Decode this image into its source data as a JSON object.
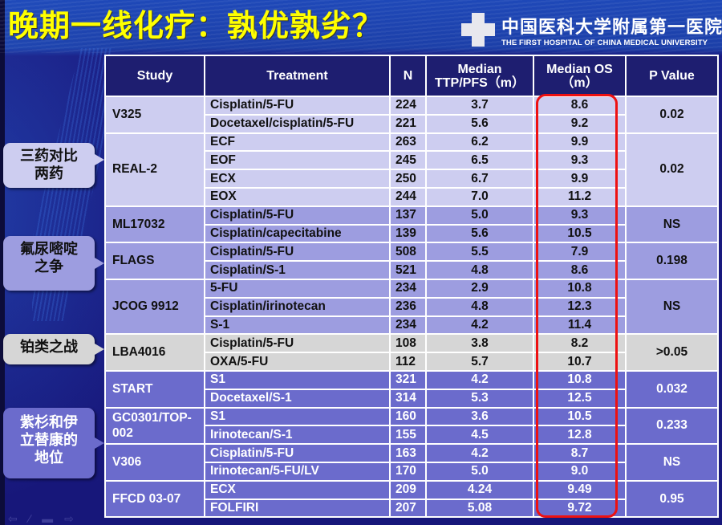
{
  "slide": {
    "title": "晚期一线化疗：孰优孰劣？",
    "logo": {
      "chinese_name": "中国医科大学附属第一医院",
      "english_name": "THE FIRST HOSPITAL OF CHINA  MEDICAL UNIVERSITY"
    }
  },
  "table": {
    "headers": {
      "study": "Study",
      "treatment": "Treatment",
      "n": "N",
      "pfs_line1": "Median",
      "pfs_line2": "TTP/PFS（m）",
      "os_line1": "Median OS",
      "os_line2": "（m）",
      "p": "P Value"
    },
    "groups": [
      {
        "study": "V325",
        "p": "0.02",
        "rows": [
          {
            "treatment": "Cisplatin/5-FU",
            "n": "224",
            "pfs": "3.7",
            "os": "8.6"
          },
          {
            "treatment": "Docetaxel/cisplatin/5-FU",
            "n": "221",
            "pfs": "5.6",
            "os": "9.2"
          }
        ]
      },
      {
        "study": "REAL-2",
        "p": "0.02",
        "rows": [
          {
            "treatment": "ECF",
            "n": "263",
            "pfs": "6.2",
            "os": "9.9"
          },
          {
            "treatment": "EOF",
            "n": "245",
            "pfs": "6.5",
            "os": "9.3"
          },
          {
            "treatment": "ECX",
            "n": "250",
            "pfs": "6.7",
            "os": "9.9"
          },
          {
            "treatment": "EOX",
            "n": "244",
            "pfs": "7.0",
            "os": "11.2"
          }
        ]
      },
      {
        "study": "ML17032",
        "p": "NS",
        "rows": [
          {
            "treatment": "Cisplatin/5-FU",
            "n": "137",
            "pfs": "5.0",
            "os": "9.3"
          },
          {
            "treatment": "Cisplatin/capecitabine",
            "n": "139",
            "pfs": "5.6",
            "os": "10.5"
          }
        ]
      },
      {
        "study": "FLAGS",
        "p": "0.198",
        "rows": [
          {
            "treatment": "Cisplatin/5-FU",
            "n": "508",
            "pfs": "5.5",
            "os": "7.9"
          },
          {
            "treatment": "Cisplatin/S-1",
            "n": "521",
            "pfs": "4.8",
            "os": "8.6"
          }
        ]
      },
      {
        "study": "JCOG 9912",
        "p": "NS",
        "rows": [
          {
            "treatment": "5-FU",
            "n": "234",
            "pfs": "2.9",
            "os": "10.8"
          },
          {
            "treatment": "Cisplatin/irinotecan",
            "n": "236",
            "pfs": "4.8",
            "os": "12.3"
          },
          {
            "treatment": "S-1",
            "n": "234",
            "pfs": "4.2",
            "os": "11.4"
          }
        ]
      },
      {
        "study": "LBA4016",
        "p": ">0.05",
        "rows": [
          {
            "treatment": "Cisplatin/5-FU",
            "n": "108",
            "pfs": "3.8",
            "os": "8.2"
          },
          {
            "treatment": "OXA/5-FU",
            "n": "112",
            "pfs": "5.7",
            "os": "10.7"
          }
        ]
      },
      {
        "study": "START",
        "p": "0.032",
        "rows": [
          {
            "treatment": "S1",
            "n": "321",
            "pfs": "4.2",
            "os": "10.8"
          },
          {
            "treatment": "Docetaxel/S-1",
            "n": "314",
            "pfs": "5.3",
            "os": "12.5"
          }
        ]
      },
      {
        "study": "GC0301/TOP-002",
        "p": "0.233",
        "rows": [
          {
            "treatment": "S1",
            "n": "160",
            "pfs": "3.6",
            "os": "10.5"
          },
          {
            "treatment": "Irinotecan/S-1",
            "n": "155",
            "pfs": "4.5",
            "os": "12.8"
          }
        ]
      },
      {
        "study": "V306",
        "p": "NS",
        "rows": [
          {
            "treatment": "Cisplatin/5-FU",
            "n": "163",
            "pfs": "4.2",
            "os": "8.7"
          },
          {
            "treatment": "Irinotecan/5-FU/LV",
            "n": "170",
            "pfs": "5.0",
            "os": "9.0"
          }
        ]
      },
      {
        "study": "FFCD 03-07",
        "p": "0.95",
        "rows": [
          {
            "treatment": "ECX",
            "n": "209",
            "pfs": "4.24",
            "os": "9.49"
          },
          {
            "treatment": "FOLFIRI",
            "n": "207",
            "pfs": "5.08",
            "os": "9.72"
          }
        ]
      }
    ]
  },
  "callouts": [
    {
      "line1": "三药对比",
      "line2": "两药"
    },
    {
      "line1": "氟尿嘧啶",
      "line2": "之争"
    },
    {
      "line1": "铂类之战"
    },
    {
      "line1": "紫杉和伊",
      "line2": "立替康的",
      "line3": "地位"
    }
  ],
  "colors": {
    "title": "#ffff00",
    "header_bg": "#1e1e70",
    "group_light": "#cdcdf0",
    "group_mid": "#9d9de0",
    "group_gray": "#d6d6d6",
    "group_dark": "#6b6bcc",
    "highlight_box": "#ee1111"
  },
  "nav_icons": [
    "arrow-left-icon",
    "pen-icon",
    "menu-icon",
    "arrow-right-icon"
  ]
}
